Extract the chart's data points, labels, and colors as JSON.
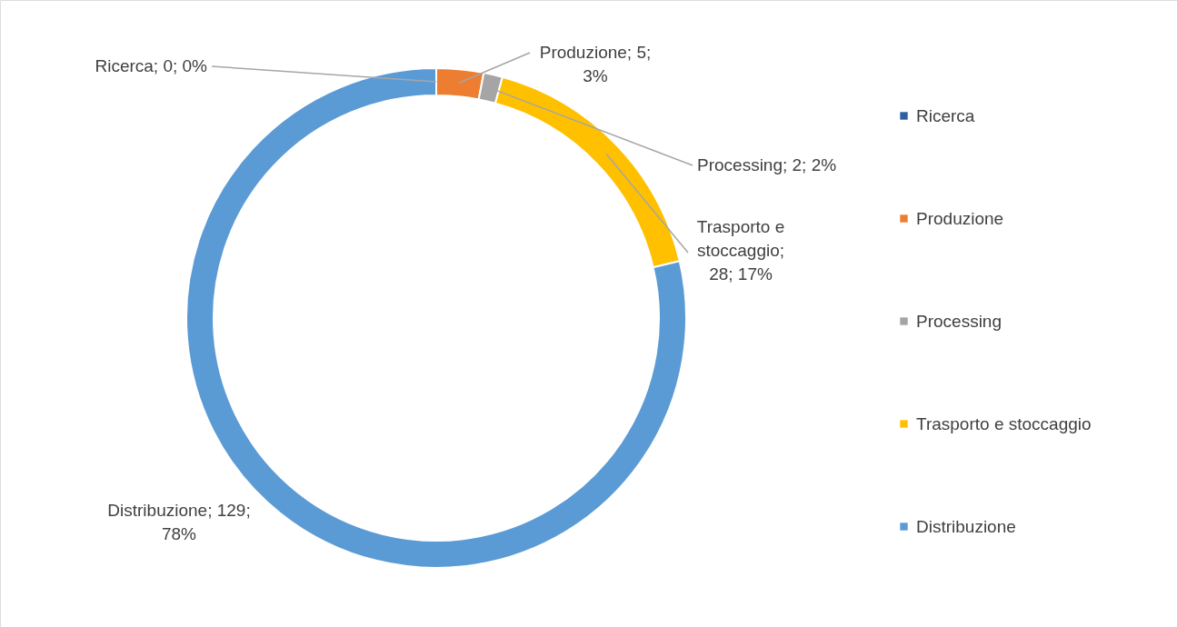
{
  "chart_data": {
    "type": "donut",
    "categories": [
      "Ricerca",
      "Produzione",
      "Processing",
      "Trasporto e stoccaggio",
      "Distribuzione"
    ],
    "values": [
      0,
      5,
      2,
      28,
      129
    ],
    "colors": [
      "#2e5fa3",
      "#ed7d31",
      "#a5a5a5",
      "#ffc000",
      "#5b9bd5"
    ],
    "value_labels": [
      "Ricerca; 0; 0%",
      "Produzione; 5; 3%",
      "Processing; 2; 2%",
      "Trasporto e stoccaggio; 28; 17%",
      "Distribuzione; 129; 78%"
    ],
    "legend": "right"
  }
}
